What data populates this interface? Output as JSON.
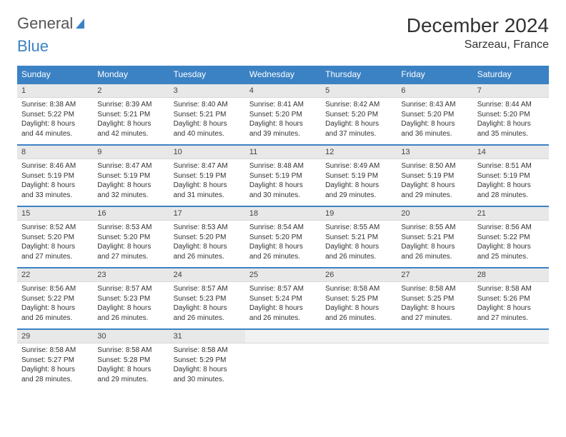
{
  "logo": {
    "part1": "General",
    "part2": "Blue"
  },
  "title": "December 2024",
  "location": "Sarzeau, France",
  "colors": {
    "header_bg": "#3b82c4",
    "header_text": "#ffffff",
    "daynum_bg": "#e8e8e8",
    "row_border": "#3b82c4",
    "text": "#333333"
  },
  "weekdays": [
    "Sunday",
    "Monday",
    "Tuesday",
    "Wednesday",
    "Thursday",
    "Friday",
    "Saturday"
  ],
  "weeks": [
    [
      {
        "n": "1",
        "sr": "Sunrise: 8:38 AM",
        "ss": "Sunset: 5:22 PM",
        "dl1": "Daylight: 8 hours",
        "dl2": "and 44 minutes."
      },
      {
        "n": "2",
        "sr": "Sunrise: 8:39 AM",
        "ss": "Sunset: 5:21 PM",
        "dl1": "Daylight: 8 hours",
        "dl2": "and 42 minutes."
      },
      {
        "n": "3",
        "sr": "Sunrise: 8:40 AM",
        "ss": "Sunset: 5:21 PM",
        "dl1": "Daylight: 8 hours",
        "dl2": "and 40 minutes."
      },
      {
        "n": "4",
        "sr": "Sunrise: 8:41 AM",
        "ss": "Sunset: 5:20 PM",
        "dl1": "Daylight: 8 hours",
        "dl2": "and 39 minutes."
      },
      {
        "n": "5",
        "sr": "Sunrise: 8:42 AM",
        "ss": "Sunset: 5:20 PM",
        "dl1": "Daylight: 8 hours",
        "dl2": "and 37 minutes."
      },
      {
        "n": "6",
        "sr": "Sunrise: 8:43 AM",
        "ss": "Sunset: 5:20 PM",
        "dl1": "Daylight: 8 hours",
        "dl2": "and 36 minutes."
      },
      {
        "n": "7",
        "sr": "Sunrise: 8:44 AM",
        "ss": "Sunset: 5:20 PM",
        "dl1": "Daylight: 8 hours",
        "dl2": "and 35 minutes."
      }
    ],
    [
      {
        "n": "8",
        "sr": "Sunrise: 8:46 AM",
        "ss": "Sunset: 5:19 PM",
        "dl1": "Daylight: 8 hours",
        "dl2": "and 33 minutes."
      },
      {
        "n": "9",
        "sr": "Sunrise: 8:47 AM",
        "ss": "Sunset: 5:19 PM",
        "dl1": "Daylight: 8 hours",
        "dl2": "and 32 minutes."
      },
      {
        "n": "10",
        "sr": "Sunrise: 8:47 AM",
        "ss": "Sunset: 5:19 PM",
        "dl1": "Daylight: 8 hours",
        "dl2": "and 31 minutes."
      },
      {
        "n": "11",
        "sr": "Sunrise: 8:48 AM",
        "ss": "Sunset: 5:19 PM",
        "dl1": "Daylight: 8 hours",
        "dl2": "and 30 minutes."
      },
      {
        "n": "12",
        "sr": "Sunrise: 8:49 AM",
        "ss": "Sunset: 5:19 PM",
        "dl1": "Daylight: 8 hours",
        "dl2": "and 29 minutes."
      },
      {
        "n": "13",
        "sr": "Sunrise: 8:50 AM",
        "ss": "Sunset: 5:19 PM",
        "dl1": "Daylight: 8 hours",
        "dl2": "and 29 minutes."
      },
      {
        "n": "14",
        "sr": "Sunrise: 8:51 AM",
        "ss": "Sunset: 5:19 PM",
        "dl1": "Daylight: 8 hours",
        "dl2": "and 28 minutes."
      }
    ],
    [
      {
        "n": "15",
        "sr": "Sunrise: 8:52 AM",
        "ss": "Sunset: 5:20 PM",
        "dl1": "Daylight: 8 hours",
        "dl2": "and 27 minutes."
      },
      {
        "n": "16",
        "sr": "Sunrise: 8:53 AM",
        "ss": "Sunset: 5:20 PM",
        "dl1": "Daylight: 8 hours",
        "dl2": "and 27 minutes."
      },
      {
        "n": "17",
        "sr": "Sunrise: 8:53 AM",
        "ss": "Sunset: 5:20 PM",
        "dl1": "Daylight: 8 hours",
        "dl2": "and 26 minutes."
      },
      {
        "n": "18",
        "sr": "Sunrise: 8:54 AM",
        "ss": "Sunset: 5:20 PM",
        "dl1": "Daylight: 8 hours",
        "dl2": "and 26 minutes."
      },
      {
        "n": "19",
        "sr": "Sunrise: 8:55 AM",
        "ss": "Sunset: 5:21 PM",
        "dl1": "Daylight: 8 hours",
        "dl2": "and 26 minutes."
      },
      {
        "n": "20",
        "sr": "Sunrise: 8:55 AM",
        "ss": "Sunset: 5:21 PM",
        "dl1": "Daylight: 8 hours",
        "dl2": "and 26 minutes."
      },
      {
        "n": "21",
        "sr": "Sunrise: 8:56 AM",
        "ss": "Sunset: 5:22 PM",
        "dl1": "Daylight: 8 hours",
        "dl2": "and 25 minutes."
      }
    ],
    [
      {
        "n": "22",
        "sr": "Sunrise: 8:56 AM",
        "ss": "Sunset: 5:22 PM",
        "dl1": "Daylight: 8 hours",
        "dl2": "and 26 minutes."
      },
      {
        "n": "23",
        "sr": "Sunrise: 8:57 AM",
        "ss": "Sunset: 5:23 PM",
        "dl1": "Daylight: 8 hours",
        "dl2": "and 26 minutes."
      },
      {
        "n": "24",
        "sr": "Sunrise: 8:57 AM",
        "ss": "Sunset: 5:23 PM",
        "dl1": "Daylight: 8 hours",
        "dl2": "and 26 minutes."
      },
      {
        "n": "25",
        "sr": "Sunrise: 8:57 AM",
        "ss": "Sunset: 5:24 PM",
        "dl1": "Daylight: 8 hours",
        "dl2": "and 26 minutes."
      },
      {
        "n": "26",
        "sr": "Sunrise: 8:58 AM",
        "ss": "Sunset: 5:25 PM",
        "dl1": "Daylight: 8 hours",
        "dl2": "and 26 minutes."
      },
      {
        "n": "27",
        "sr": "Sunrise: 8:58 AM",
        "ss": "Sunset: 5:25 PM",
        "dl1": "Daylight: 8 hours",
        "dl2": "and 27 minutes."
      },
      {
        "n": "28",
        "sr": "Sunrise: 8:58 AM",
        "ss": "Sunset: 5:26 PM",
        "dl1": "Daylight: 8 hours",
        "dl2": "and 27 minutes."
      }
    ],
    [
      {
        "n": "29",
        "sr": "Sunrise: 8:58 AM",
        "ss": "Sunset: 5:27 PM",
        "dl1": "Daylight: 8 hours",
        "dl2": "and 28 minutes."
      },
      {
        "n": "30",
        "sr": "Sunrise: 8:58 AM",
        "ss": "Sunset: 5:28 PM",
        "dl1": "Daylight: 8 hours",
        "dl2": "and 29 minutes."
      },
      {
        "n": "31",
        "sr": "Sunrise: 8:58 AM",
        "ss": "Sunset: 5:29 PM",
        "dl1": "Daylight: 8 hours",
        "dl2": "and 30 minutes."
      },
      {
        "n": "",
        "sr": "",
        "ss": "",
        "dl1": "",
        "dl2": ""
      },
      {
        "n": "",
        "sr": "",
        "ss": "",
        "dl1": "",
        "dl2": ""
      },
      {
        "n": "",
        "sr": "",
        "ss": "",
        "dl1": "",
        "dl2": ""
      },
      {
        "n": "",
        "sr": "",
        "ss": "",
        "dl1": "",
        "dl2": ""
      }
    ]
  ]
}
